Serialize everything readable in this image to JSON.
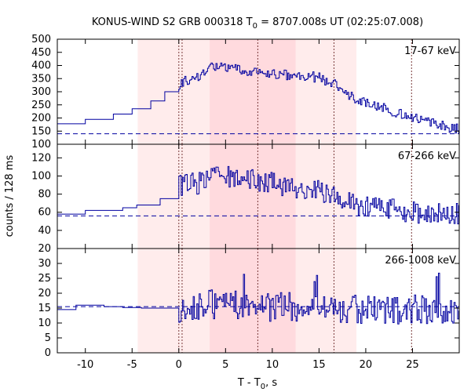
{
  "chart_data": {
    "type": "line",
    "title": "KONUS-WIND S2 GRB 000318 T",
    "title_sub": "0",
    "title_rest": " = 8707.008s UT (02:25:07.008)",
    "xlabel": "T - T",
    "xlabel_sub": "0",
    "xlabel_rest": ", s",
    "ylabel": "counts / 128 ms",
    "xlim": [
      -13,
      30
    ],
    "x_ticks": [
      -10,
      -5,
      0,
      5,
      10,
      15,
      20,
      25
    ],
    "shaded_regions": [
      {
        "x0": -4.4,
        "x1": 19.0,
        "level": "light"
      },
      {
        "x0": 3.3,
        "x1": 12.5,
        "level": "dark"
      }
    ],
    "vlines": [
      0.0,
      0.35,
      8.45,
      16.6,
      24.9
    ],
    "colors": {
      "trace": "#0000a0",
      "light_band": "#ffecec",
      "dark_band": "#ffdade",
      "background_line": "#0000a0",
      "vline": "#7a3a3a"
    },
    "panels": [
      {
        "label": "17-67 keV",
        "ylim": [
          100,
          500
        ],
        "y_ticks": [
          100,
          150,
          200,
          250,
          300,
          350,
          400,
          450,
          500
        ],
        "background": 140,
        "pre_trigger": [
          {
            "x": -13.0,
            "y": 178
          },
          {
            "x": -10.0,
            "y": 195
          },
          {
            "x": -7.0,
            "y": 215
          },
          {
            "x": -5.0,
            "y": 235
          },
          {
            "x": -3.0,
            "y": 265
          },
          {
            "x": -1.5,
            "y": 300
          }
        ],
        "knots": [
          [
            0,
            330
          ],
          [
            2,
            360
          ],
          [
            3.5,
            395
          ],
          [
            6,
            385
          ],
          [
            9,
            370
          ],
          [
            12,
            360
          ],
          [
            15,
            355
          ],
          [
            17,
            320
          ],
          [
            19,
            270
          ],
          [
            22,
            235
          ],
          [
            25,
            200
          ],
          [
            28,
            170
          ],
          [
            30,
            160
          ]
        ],
        "noise": 20
      },
      {
        "label": "67-266 keV",
        "ylim": [
          20,
          135
        ],
        "y_ticks": [
          20,
          40,
          60,
          80,
          100,
          120
        ],
        "background": 56,
        "pre_trigger": [
          {
            "x": -13.0,
            "y": 58
          },
          {
            "x": -10.0,
            "y": 62
          },
          {
            "x": -6.0,
            "y": 65
          },
          {
            "x": -4.5,
            "y": 68
          },
          {
            "x": -2.0,
            "y": 75
          }
        ],
        "knots": [
          [
            0,
            90
          ],
          [
            2,
            92
          ],
          [
            3.5,
            100
          ],
          [
            6,
            98
          ],
          [
            9,
            94
          ],
          [
            12,
            88
          ],
          [
            15,
            84
          ],
          [
            17,
            76
          ],
          [
            19,
            68
          ],
          [
            22,
            64
          ],
          [
            25,
            60
          ],
          [
            28,
            58
          ],
          [
            30,
            58
          ]
        ],
        "noise": 12
      },
      {
        "label": "266-1008 keV",
        "ylim": [
          0,
          35
        ],
        "y_ticks": [
          0,
          5,
          10,
          15,
          20,
          25,
          30
        ],
        "background": 15.5,
        "pre_trigger": [
          {
            "x": -13.0,
            "y": 14.5
          },
          {
            "x": -11.0,
            "y": 16
          },
          {
            "x": -8.0,
            "y": 15.5
          },
          {
            "x": -6.0,
            "y": 15.2
          },
          {
            "x": -4.0,
            "y": 15
          }
        ],
        "knots": [
          [
            0,
            15
          ],
          [
            2,
            16
          ],
          [
            5,
            16.5
          ],
          [
            10,
            15.5
          ],
          [
            15,
            15
          ],
          [
            20,
            14.5
          ],
          [
            25,
            14.5
          ],
          [
            30,
            14.5
          ]
        ],
        "noise": 5
      }
    ]
  }
}
